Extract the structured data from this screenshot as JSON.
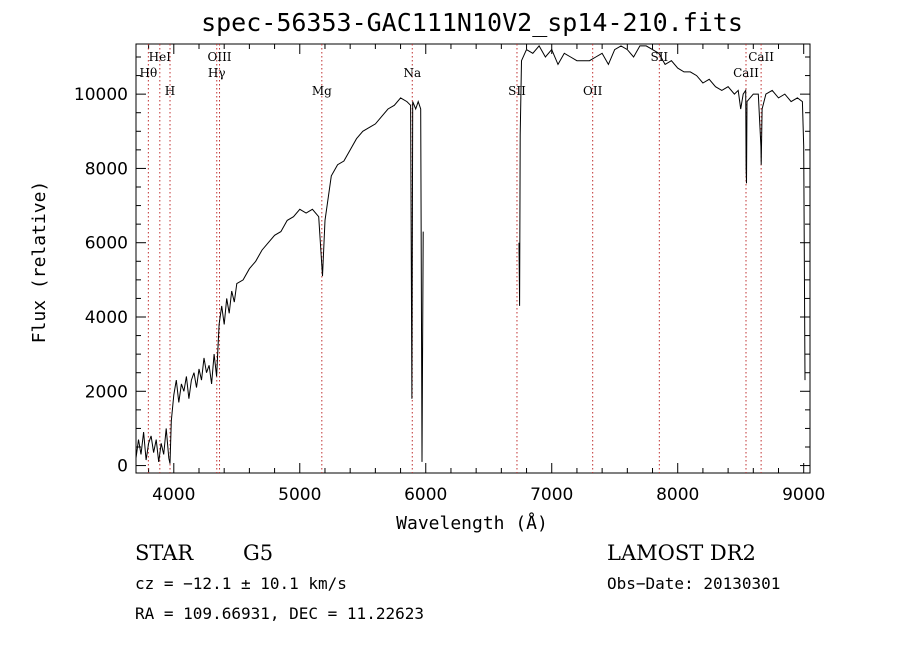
{
  "chart_data": {
    "type": "line",
    "title": "spec-56353-GAC111N10V2_sp14-210.fits",
    "xlabel": "Wavelength (Å)",
    "ylabel": "Flux (relative)",
    "xlim": [
      3700,
      9050
    ],
    "ylim": [
      -200,
      11350
    ],
    "x_ticks": [
      4000,
      5000,
      6000,
      7000,
      8000,
      9000
    ],
    "x_tick_labels": [
      "4000",
      "5000",
      "6000",
      "7000",
      "8000",
      "9000"
    ],
    "y_ticks": [
      0,
      2000,
      4000,
      6000,
      8000,
      10000
    ],
    "y_tick_labels": [
      "0",
      "2000",
      "4000",
      "6000",
      "8000",
      "10000"
    ],
    "grid": false,
    "series": [
      {
        "values": [
          [
            3700,
            200
          ],
          [
            3720,
            700
          ],
          [
            3740,
            300
          ],
          [
            3760,
            900
          ],
          [
            3780,
            150
          ],
          [
            3800,
            600
          ],
          [
            3820,
            800
          ],
          [
            3840,
            350
          ],
          [
            3860,
            700
          ],
          [
            3880,
            100
          ],
          [
            3900,
            600
          ],
          [
            3920,
            300
          ],
          [
            3940,
            1000
          ],
          [
            3960,
            200
          ],
          [
            3970,
            50
          ],
          [
            3980,
            1200
          ],
          [
            4000,
            1900
          ],
          [
            4020,
            2300
          ],
          [
            4040,
            1700
          ],
          [
            4060,
            2200
          ],
          [
            4080,
            2000
          ],
          [
            4100,
            2400
          ],
          [
            4120,
            1800
          ],
          [
            4140,
            2300
          ],
          [
            4160,
            2500
          ],
          [
            4180,
            2100
          ],
          [
            4200,
            2600
          ],
          [
            4220,
            2300
          ],
          [
            4240,
            2900
          ],
          [
            4260,
            2500
          ],
          [
            4280,
            2700
          ],
          [
            4300,
            2200
          ],
          [
            4320,
            3000
          ],
          [
            4340,
            2400
          ],
          [
            4360,
            3800
          ],
          [
            4380,
            4300
          ],
          [
            4400,
            3800
          ],
          [
            4420,
            4500
          ],
          [
            4440,
            4100
          ],
          [
            4460,
            4700
          ],
          [
            4480,
            4400
          ],
          [
            4500,
            4900
          ],
          [
            4550,
            5000
          ],
          [
            4600,
            5300
          ],
          [
            4650,
            5500
          ],
          [
            4700,
            5800
          ],
          [
            4750,
            6000
          ],
          [
            4800,
            6200
          ],
          [
            4850,
            6300
          ],
          [
            4900,
            6600
          ],
          [
            4950,
            6700
          ],
          [
            5000,
            6900
          ],
          [
            5050,
            6800
          ],
          [
            5100,
            6900
          ],
          [
            5150,
            6700
          ],
          [
            5180,
            5100
          ],
          [
            5200,
            6600
          ],
          [
            5250,
            7800
          ],
          [
            5300,
            8100
          ],
          [
            5350,
            8200
          ],
          [
            5400,
            8500
          ],
          [
            5450,
            8800
          ],
          [
            5500,
            9000
          ],
          [
            5550,
            9100
          ],
          [
            5600,
            9200
          ],
          [
            5650,
            9400
          ],
          [
            5700,
            9600
          ],
          [
            5750,
            9700
          ],
          [
            5800,
            9900
          ],
          [
            5850,
            9800
          ],
          [
            5880,
            9700
          ],
          [
            5890,
            1800
          ],
          [
            5896,
            9800
          ],
          [
            5920,
            9600
          ],
          [
            5940,
            9800
          ],
          [
            5960,
            9600
          ],
          [
            5970,
            100
          ],
          [
            5980,
            6300
          ],
          [
            6000,
            null
          ],
          [
            6740,
            null
          ],
          [
            6740,
            6000
          ],
          [
            6745,
            4300
          ],
          [
            6750,
            8900
          ],
          [
            6760,
            10900
          ],
          [
            6800,
            11200
          ],
          [
            6850,
            11100
          ],
          [
            6900,
            11300
          ],
          [
            6950,
            11000
          ],
          [
            7000,
            11200
          ],
          [
            7050,
            10800
          ],
          [
            7100,
            11100
          ],
          [
            7150,
            11000
          ],
          [
            7200,
            10900
          ],
          [
            7250,
            10900
          ],
          [
            7300,
            10900
          ],
          [
            7350,
            11000
          ],
          [
            7400,
            11100
          ],
          [
            7450,
            10800
          ],
          [
            7500,
            11200
          ],
          [
            7550,
            11300
          ],
          [
            7600,
            11200
          ],
          [
            7650,
            11000
          ],
          [
            7700,
            11300
          ],
          [
            7750,
            11300
          ],
          [
            7800,
            11200
          ],
          [
            7850,
            11100
          ],
          [
            7900,
            10800
          ],
          [
            7950,
            10900
          ],
          [
            8000,
            10700
          ],
          [
            8050,
            10600
          ],
          [
            8100,
            10600
          ],
          [
            8150,
            10500
          ],
          [
            8200,
            10300
          ],
          [
            8250,
            10400
          ],
          [
            8300,
            10200
          ],
          [
            8350,
            10100
          ],
          [
            8400,
            10200
          ],
          [
            8450,
            10000
          ],
          [
            8480,
            10100
          ],
          [
            8500,
            9600
          ],
          [
            8520,
            10000
          ],
          [
            8540,
            10100
          ],
          [
            8543,
            8000
          ],
          [
            8546,
            7600
          ],
          [
            8550,
            9800
          ],
          [
            8600,
            10000
          ],
          [
            8640,
            10000
          ],
          [
            8660,
            8600
          ],
          [
            8663,
            8100
          ],
          [
            8670,
            9600
          ],
          [
            8700,
            10000
          ],
          [
            8750,
            10100
          ],
          [
            8800,
            9900
          ],
          [
            8850,
            10000
          ],
          [
            8900,
            9800
          ],
          [
            8950,
            9900
          ],
          [
            8990,
            9800
          ],
          [
            9000,
            8600
          ],
          [
            9010,
            2300
          ]
        ]
      }
    ],
    "lines": [
      {
        "x": 3798,
        "label": "Hθ",
        "row": 2
      },
      {
        "x": 3889,
        "label": "HeI",
        "row": 1
      },
      {
        "x": 3970,
        "label": "H",
        "row": 3
      },
      {
        "x": 4341,
        "label": "Hγ",
        "row": 2
      },
      {
        "x": 4363,
        "label": "OIII",
        "row": 1
      },
      {
        "x": 5175,
        "label": "Mg",
        "row": 3
      },
      {
        "x": 5893,
        "label": "Na",
        "row": 2
      },
      {
        "x": 6724,
        "label": "SII",
        "row": 3
      },
      {
        "x": 7325,
        "label": "OII",
        "row": 3
      },
      {
        "x": 7854,
        "label": "SII",
        "row": 1
      },
      {
        "x": 8542,
        "label": "CaII",
        "row": 2
      },
      {
        "x": 8662,
        "label": "CaII",
        "row": 1
      }
    ]
  },
  "info": {
    "object_class": "STAR",
    "subclass": "G5",
    "survey": "LAMOST DR2",
    "cz": "cz = −12.1 ± 10.1 km/s",
    "obs_date": "Obs−Date: 20130301",
    "coords": "RA = 109.66931, DEC =  11.22623"
  }
}
